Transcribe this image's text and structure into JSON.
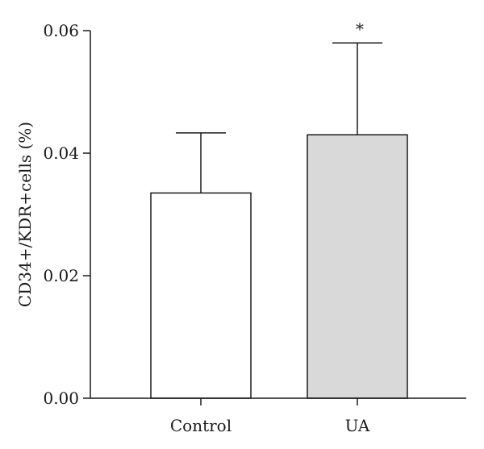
{
  "chart_data": {
    "type": "bar",
    "title": "",
    "xlabel": "",
    "ylabel": "CD34+/KDR+cells (%)",
    "ylim": [
      0,
      0.06
    ],
    "yticks": [
      0.0,
      0.02,
      0.04,
      0.06
    ],
    "ytick_labels": [
      "0.00",
      "0.02",
      "0.04",
      "0.06"
    ],
    "categories": [
      "Control",
      "UA"
    ],
    "values": [
      0.0335,
      0.043
    ],
    "errors": [
      0.0098,
      0.015
    ],
    "colors": [
      "#ffffff",
      "#d9d9d9"
    ],
    "annotations": [
      "",
      "*"
    ],
    "grid": false,
    "legend": "none"
  }
}
